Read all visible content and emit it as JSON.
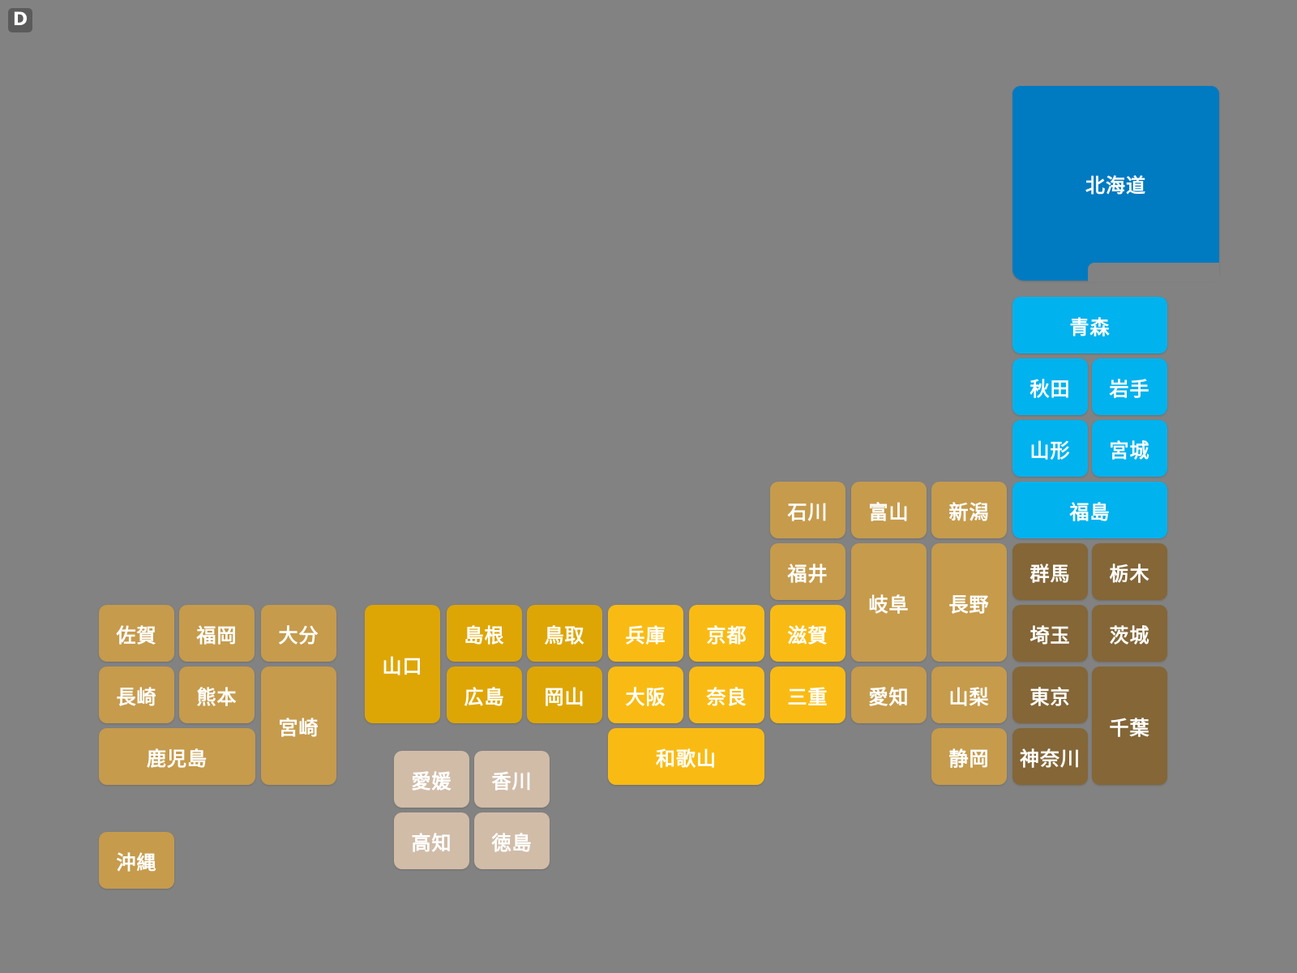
{
  "badge": "D",
  "regions": {
    "hokkaido": {
      "color": "#007ac1"
    },
    "tohoku": {
      "color": "#00b2ee"
    },
    "kanto": {
      "color": "#846637"
    },
    "chubu": {
      "color": "#c69b4c"
    },
    "kinki": {
      "color": "#f9bb13"
    },
    "chugoku": {
      "color": "#dea604"
    },
    "shikoku": {
      "color": "#d1bca8"
    },
    "kyushu": {
      "color": "#c69b4c"
    }
  },
  "prefectures": [
    {
      "id": "hokkaido",
      "name": "北海道",
      "region": "hokkaido"
    },
    {
      "id": "aomori",
      "name": "青森",
      "region": "tohoku"
    },
    {
      "id": "akita",
      "name": "秋田",
      "region": "tohoku"
    },
    {
      "id": "iwate",
      "name": "岩手",
      "region": "tohoku"
    },
    {
      "id": "yamagata",
      "name": "山形",
      "region": "tohoku"
    },
    {
      "id": "miyagi",
      "name": "宮城",
      "region": "tohoku"
    },
    {
      "id": "fukushima",
      "name": "福島",
      "region": "tohoku"
    },
    {
      "id": "gunma",
      "name": "群馬",
      "region": "kanto"
    },
    {
      "id": "tochigi",
      "name": "栃木",
      "region": "kanto"
    },
    {
      "id": "saitama",
      "name": "埼玉",
      "region": "kanto"
    },
    {
      "id": "ibaraki",
      "name": "茨城",
      "region": "kanto"
    },
    {
      "id": "tokyo",
      "name": "東京",
      "region": "kanto"
    },
    {
      "id": "chiba",
      "name": "千葉",
      "region": "kanto"
    },
    {
      "id": "kanagawa",
      "name": "神奈川",
      "region": "kanto"
    },
    {
      "id": "ishikawa",
      "name": "石川",
      "region": "chubu"
    },
    {
      "id": "toyama",
      "name": "富山",
      "region": "chubu"
    },
    {
      "id": "niigata",
      "name": "新潟",
      "region": "chubu"
    },
    {
      "id": "fukui",
      "name": "福井",
      "region": "chubu"
    },
    {
      "id": "gifu",
      "name": "岐阜",
      "region": "chubu"
    },
    {
      "id": "nagano",
      "name": "長野",
      "region": "chubu"
    },
    {
      "id": "aichi",
      "name": "愛知",
      "region": "chubu"
    },
    {
      "id": "yamanashi",
      "name": "山梨",
      "region": "chubu"
    },
    {
      "id": "shizuoka",
      "name": "静岡",
      "region": "chubu"
    },
    {
      "id": "shiga",
      "name": "滋賀",
      "region": "kinki"
    },
    {
      "id": "hyogo",
      "name": "兵庫",
      "region": "kinki"
    },
    {
      "id": "kyoto",
      "name": "京都",
      "region": "kinki"
    },
    {
      "id": "osaka",
      "name": "大阪",
      "region": "kinki"
    },
    {
      "id": "nara",
      "name": "奈良",
      "region": "kinki"
    },
    {
      "id": "mie",
      "name": "三重",
      "region": "kinki"
    },
    {
      "id": "wakayama",
      "name": "和歌山",
      "region": "kinki"
    },
    {
      "id": "yamaguchi",
      "name": "山口",
      "region": "chugoku"
    },
    {
      "id": "shimane",
      "name": "島根",
      "region": "chugoku"
    },
    {
      "id": "tottori",
      "name": "鳥取",
      "region": "chugoku"
    },
    {
      "id": "hiroshima",
      "name": "広島",
      "region": "chugoku"
    },
    {
      "id": "okayama",
      "name": "岡山",
      "region": "chugoku"
    },
    {
      "id": "ehime",
      "name": "愛媛",
      "region": "shikoku"
    },
    {
      "id": "kagawa",
      "name": "香川",
      "region": "shikoku"
    },
    {
      "id": "kochi",
      "name": "高知",
      "region": "shikoku"
    },
    {
      "id": "tokushima",
      "name": "徳島",
      "region": "shikoku"
    },
    {
      "id": "saga",
      "name": "佐賀",
      "region": "kyushu"
    },
    {
      "id": "fukuoka",
      "name": "福岡",
      "region": "kyushu"
    },
    {
      "id": "oita",
      "name": "大分",
      "region": "kyushu"
    },
    {
      "id": "nagasaki",
      "name": "長崎",
      "region": "kyushu"
    },
    {
      "id": "kumamoto",
      "name": "熊本",
      "region": "kyushu"
    },
    {
      "id": "miyazaki",
      "name": "宮崎",
      "region": "kyushu"
    },
    {
      "id": "kagoshima",
      "name": "鹿児島",
      "region": "kyushu"
    },
    {
      "id": "okinawa",
      "name": "沖縄",
      "region": "kyushu"
    }
  ]
}
